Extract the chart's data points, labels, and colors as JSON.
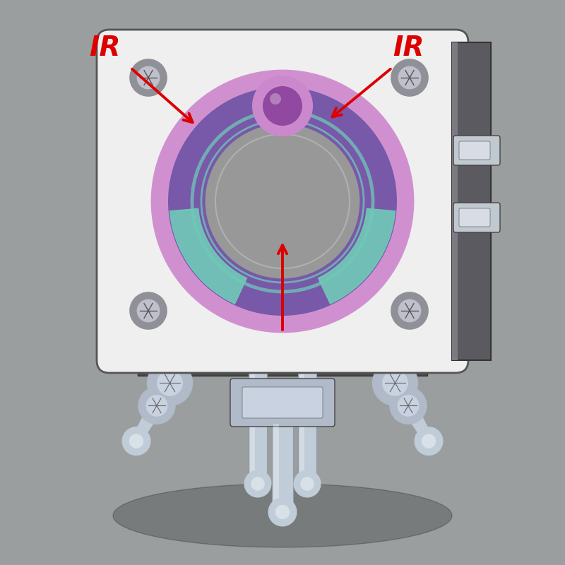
{
  "background_color": "#9a9e9e",
  "figsize": [
    8.0,
    8.0
  ],
  "dpi": 100,
  "body_color": "#efefef",
  "body_edge": "#555555",
  "disk_outer_color": "#d090d0",
  "disk_mid_color": "#7858a8",
  "disk_knob_color": "#cc88cc",
  "window_color": "#70c8b8",
  "sample_color": "#989898",
  "arrow_color": "#dd0000",
  "pipe_color": "#c0ccd8",
  "pipe_dark": "#909aa8",
  "nut_color": "#b0bac8",
  "screw_outer": "#909098",
  "screw_inner": "#c0c0cc",
  "side_block_color": "#3a3a3a",
  "right_port_color": "#c0c8d0",
  "ir_color": "#dd0000"
}
